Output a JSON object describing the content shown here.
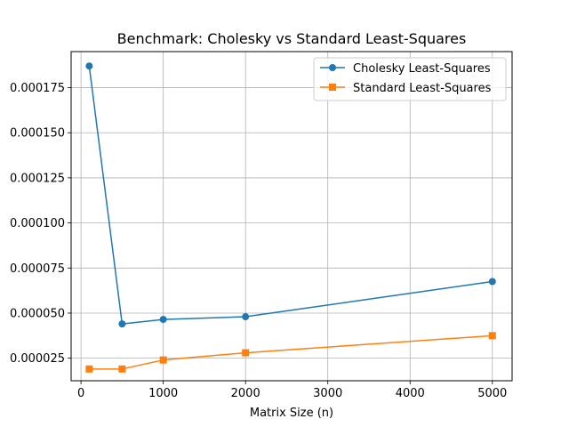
{
  "chart_data": {
    "type": "line",
    "title": "Benchmark: Cholesky vs Standard Least-Squares",
    "xlabel": "Matrix Size (n)",
    "ylabel": "",
    "xlim": [
      -120,
      5240
    ],
    "ylim": [
      1.25e-05,
      0.000195
    ],
    "x_ticks": [
      0,
      1000,
      2000,
      3000,
      4000,
      5000
    ],
    "x_tick_labels": [
      "0",
      "1000",
      "2000",
      "3000",
      "4000",
      "5000"
    ],
    "y_ticks": [
      2.5e-05,
      5e-05,
      7.5e-05,
      0.0001,
      0.000125,
      0.00015,
      0.000175
    ],
    "y_tick_labels": [
      "0.000025",
      "0.000050",
      "0.000075",
      "0.000100",
      "0.000125",
      "0.000150",
      "0.000175"
    ],
    "grid": true,
    "legend_position": "top-right",
    "series": [
      {
        "name": "Cholesky Least-Squares",
        "color": "#1f77b4",
        "marker": "circle",
        "x": [
          100,
          500,
          1000,
          2000,
          5000
        ],
        "y": [
          0.000187,
          4.4e-05,
          4.65e-05,
          4.8e-05,
          6.75e-05
        ]
      },
      {
        "name": "Standard Least-Squares",
        "color": "#ff7f0e",
        "marker": "square",
        "x": [
          100,
          500,
          1000,
          2000,
          5000
        ],
        "y": [
          1.9e-05,
          1.9e-05,
          2.4e-05,
          2.8e-05,
          3.75e-05
        ]
      }
    ]
  }
}
